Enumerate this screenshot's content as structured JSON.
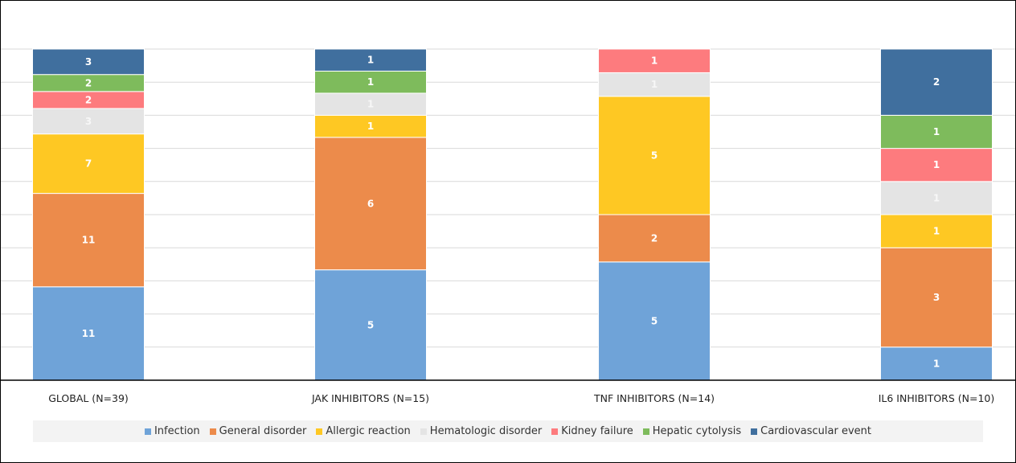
{
  "chart_data": {
    "type": "bar",
    "stacked": true,
    "title": "",
    "xlabel": "",
    "ylabel": "",
    "normalized_percent": true,
    "ylim": [
      0,
      100
    ],
    "grid": true,
    "legend_position": "bottom",
    "categories": [
      "GLOBAL (N=39)",
      "JAK INHIBITORS (N=15)",
      "TNF INHIBITORS (N=14)",
      "IL6 INHIBITORS (N=10)"
    ],
    "series": [
      {
        "name": "Infection",
        "color": "#6fa3d8",
        "values": [
          11,
          5,
          5,
          1
        ]
      },
      {
        "name": "General disorder",
        "color": "#ec8b4b",
        "values": [
          11,
          6,
          2,
          3
        ]
      },
      {
        "name": "Allergic reaction",
        "color": "#fec823",
        "values": [
          7,
          1,
          5,
          1
        ]
      },
      {
        "name": "Hematologic disorder",
        "color": "#e4e4e4",
        "values": [
          3,
          1,
          1,
          1
        ]
      },
      {
        "name": "Kidney failure",
        "color": "#fd7b7e",
        "values": [
          2,
          0,
          1,
          1
        ]
      },
      {
        "name": "Hepatic cytolysis",
        "color": "#7ebb5c",
        "values": [
          2,
          1,
          0,
          1
        ]
      },
      {
        "name": "Cardiovascular event",
        "color": "#406f9e",
        "values": [
          3,
          1,
          0,
          2
        ]
      }
    ]
  }
}
